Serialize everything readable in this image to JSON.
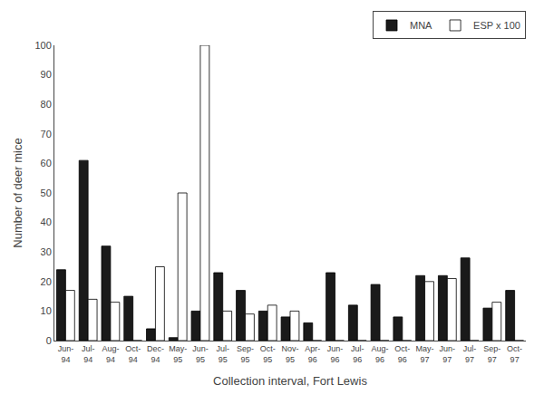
{
  "chart_data": {
    "type": "bar",
    "categories": [
      "Jun-\n94",
      "Jul-\n94",
      "Aug-\n94",
      "Oct-\n94",
      "Dec-\n94",
      "May-\n95",
      "Jun-\n95",
      "Jul-\n95",
      "Sep-\n95",
      "Oct-\n95",
      "Nov-\n95",
      "Apr-\n96",
      "Jun-\n96",
      "Jul-\n96",
      "Aug-\n96",
      "Oct-\n96",
      "May-\n97",
      "Jun-\n97",
      "Jul-\n97",
      "Sep-\n97",
      "Oct-\n97"
    ],
    "series": [
      {
        "name": "MNA",
        "color": "#1a1a1a",
        "values": [
          24,
          61,
          32,
          15,
          4,
          1,
          10,
          23,
          17,
          10,
          8,
          6,
          23,
          12,
          19,
          8,
          22,
          22,
          28,
          11,
          17
        ]
      },
      {
        "name": "ESP x 100",
        "color": "#ffffff",
        "values": [
          17,
          14,
          13,
          0,
          25,
          50,
          100,
          10,
          9,
          12,
          10,
          0,
          0,
          0,
          0,
          0,
          20,
          21,
          0,
          13,
          0
        ]
      }
    ],
    "xlabel": "Collection interval, Fort Lewis",
    "ylabel": "Number of deer mice",
    "ylim": [
      0,
      100
    ],
    "yticks": [
      0,
      10,
      20,
      30,
      40,
      50,
      60,
      70,
      80,
      90,
      100
    ],
    "grid": false,
    "legend": "upper right"
  }
}
